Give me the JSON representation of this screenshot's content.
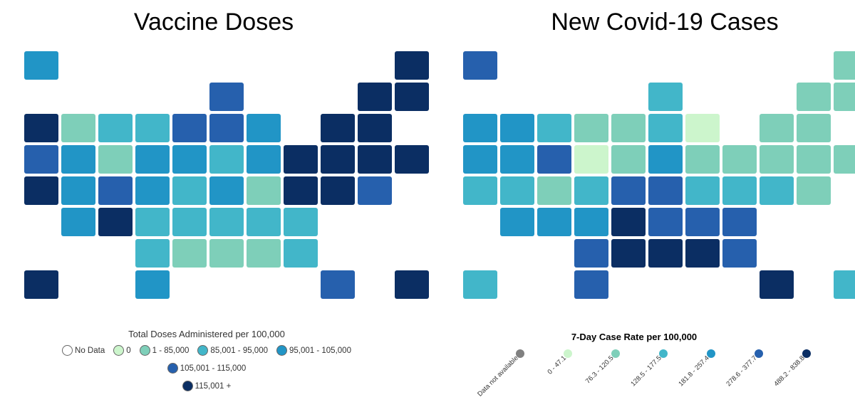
{
  "maps": [
    {
      "title": "Vaccine Doses",
      "legend_title": "Total Doses Administered per 100,000",
      "bins": [
        {
          "label": "No Data",
          "color": "#ffffff"
        },
        {
          "label": "0",
          "color": "#ccf5cc"
        },
        {
          "label": "1 - 85,000",
          "color": "#7ecfb9"
        },
        {
          "label": "85,001 - 95,000",
          "color": "#42b6c9"
        },
        {
          "label": "95,001 - 105,000",
          "color": "#2195c6"
        },
        {
          "label": "105,001 - 115,000",
          "color": "#2660ad"
        },
        {
          "label": "115,001 +",
          "color": "#0b2e63"
        }
      ],
      "states": {
        "WA": 6,
        "OR": 5,
        "CA": 6,
        "ID": 2,
        "NV": 4,
        "MT": 3,
        "WY": 2,
        "UT": 4,
        "AZ": 4,
        "CO": 5,
        "NM": 6,
        "ND": 3,
        "SD": 4,
        "NE": 4,
        "KS": 3,
        "OK": 3,
        "TX": 4,
        "MN": 5,
        "IA": 4,
        "MO": 3,
        "AR": 3,
        "LA": 2,
        "WI": 5,
        "IL": 5,
        "MI": 4,
        "IN": 3,
        "OH": 4,
        "KY": 4,
        "TN": 3,
        "MS": 2,
        "AL": 2,
        "GA": 3,
        "FL": 5,
        "SC": 3,
        "NC": 3,
        "VA": 6,
        "WV": 2,
        "PA": 6,
        "NY": 6,
        "VT": 6,
        "NH": 6,
        "ME": 6,
        "MA": 6,
        "CT": 6,
        "RI": 6,
        "NJ": 6,
        "DE": 5,
        "MD": 6,
        "AK": 4,
        "HI": 6,
        "PR": 6
      }
    },
    {
      "title": "New Covid-19 Cases",
      "legend_title": "7-Day Case Rate per 100,000",
      "bins": [
        {
          "label": "Data not available",
          "color": "#808080"
        },
        {
          "label": "0 - 47.1",
          "color": "#ccf5cc"
        },
        {
          "label": "76.3 - 120.5",
          "color": "#7ecfb9"
        },
        {
          "label": "128.5 - 177.5",
          "color": "#42b6c9"
        },
        {
          "label": "181.8 - 257.4",
          "color": "#2195c6"
        },
        {
          "label": "278.6 - 377.7",
          "color": "#2660ad"
        },
        {
          "label": "488.2 - 838.8",
          "color": "#0b2e63"
        }
      ],
      "states": {
        "WA": 4,
        "OR": 4,
        "CA": 3,
        "ID": 4,
        "NV": 4,
        "MT": 3,
        "WY": 5,
        "UT": 3,
        "AZ": 4,
        "CO": 2,
        "NM": 4,
        "ND": 2,
        "SD": 1,
        "NE": 3,
        "KS": 4,
        "OK": 5,
        "TX": 5,
        "MN": 2,
        "IA": 2,
        "MO": 5,
        "AR": 6,
        "LA": 6,
        "WI": 3,
        "IL": 3,
        "MI": 1,
        "IN": 4,
        "OH": 2,
        "KY": 5,
        "TN": 5,
        "MS": 6,
        "AL": 6,
        "GA": 5,
        "FL": 6,
        "SC": 5,
        "NC": 5,
        "VA": 3,
        "WV": 3,
        "PA": 2,
        "NY": 2,
        "VT": 2,
        "NH": 2,
        "ME": 2,
        "MA": 2,
        "CT": 2,
        "RI": 2,
        "NJ": 2,
        "DE": 2,
        "MD": 3,
        "AK": 5,
        "HI": 3,
        "PR": 3
      }
    }
  ]
}
